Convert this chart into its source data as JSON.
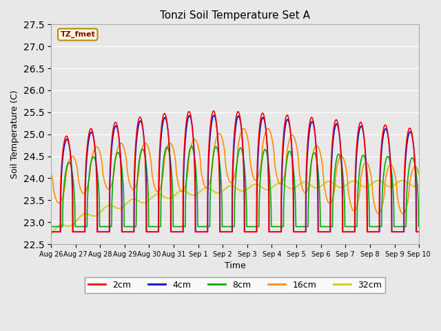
{
  "title": "Tonzi Soil Temperature Set A",
  "xlabel": "Time",
  "ylabel": "Soil Temperature (C)",
  "annotation": "TZ_fmet",
  "annotation_color": "#8B0000",
  "annotation_bg": "#FFFFE0",
  "annotation_border": "#B8860B",
  "ylim": [
    22.5,
    27.5
  ],
  "line_colors": {
    "2cm": "#FF0000",
    "4cm": "#0000CC",
    "8cm": "#00AA00",
    "16cm": "#FF8C00",
    "32cm": "#CCCC00"
  },
  "bg_color": "#E8E8E8",
  "x_tick_labels": [
    "Aug 26",
    "Aug 27",
    "Aug 28",
    "Aug 29",
    "Aug 30",
    "Aug 31",
    "Sep 1",
    "Sep 2",
    "Sep 3",
    "Sep 4",
    "Sep 5",
    "Sep 6",
    "Sep 7",
    "Sep 8",
    "Sep 9",
    "Sep 10"
  ],
  "yticks": [
    22.5,
    23.0,
    23.5,
    24.0,
    24.5,
    25.0,
    25.5,
    26.0,
    26.5,
    27.0,
    27.5
  ]
}
